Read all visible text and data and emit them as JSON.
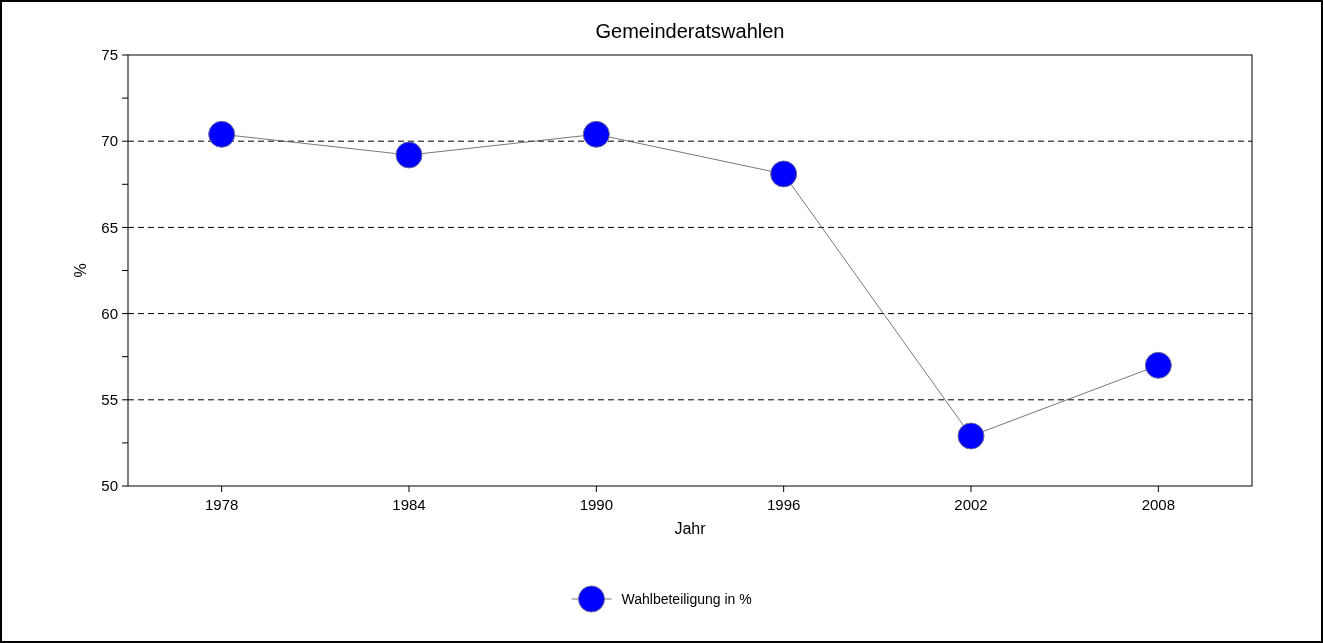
{
  "chart_data": {
    "type": "line",
    "title": "Gemeinderatswahlen",
    "xlabel": "Jahr",
    "ylabel": "%",
    "categories": [
      "1978",
      "1984",
      "1990",
      "1996",
      "2002",
      "2008"
    ],
    "series": [
      {
        "name": "Wahlbeteiligung in %",
        "color": "#0000ff",
        "values": [
          70.4,
          69.2,
          70.4,
          68.1,
          52.9,
          57.0
        ]
      }
    ],
    "ylim": [
      50,
      75
    ],
    "yticks": [
      50,
      {
        "value": 52.5,
        "label": null
      },
      55,
      {
        "value": 57.5,
        "label": null
      },
      60,
      {
        "value": 62.5,
        "label": null
      },
      65,
      {
        "value": 67.5,
        "label": null
      },
      70,
      {
        "value": 72.5,
        "label": null
      },
      75
    ],
    "grid": "y",
    "legend": "bottom",
    "marker": "circle",
    "line_style": "solid"
  }
}
